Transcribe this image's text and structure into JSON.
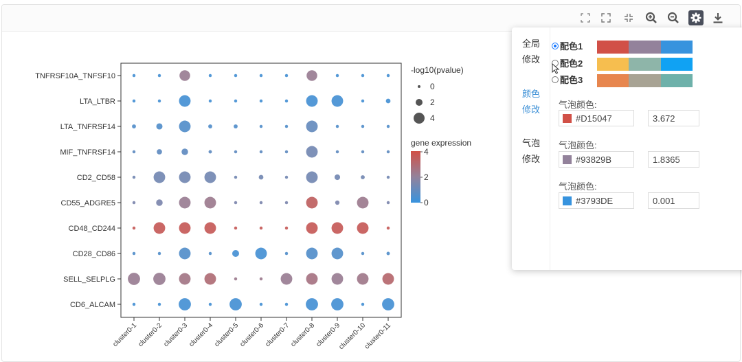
{
  "toolbar": {
    "buttons": [
      {
        "name": "fit-screen-icon",
        "glyph": "⤢"
      },
      {
        "name": "fullscreen-icon",
        "glyph": "⛶"
      },
      {
        "name": "exit-fullscreen-icon",
        "glyph": "⤡"
      },
      {
        "name": "zoom-in-icon",
        "glyph": "+"
      },
      {
        "name": "zoom-out-icon",
        "glyph": "−"
      },
      {
        "name": "settings-gear-icon",
        "glyph": "⚙"
      },
      {
        "name": "download-icon",
        "glyph": "⤓"
      }
    ]
  },
  "chart_data": {
    "type": "scatter",
    "subtype": "dot-plot",
    "title": "",
    "xlabel": "",
    "ylabel": "",
    "x_categories": [
      "cluster0-1",
      "cluster0-2",
      "cluster0-3",
      "cluster0-4",
      "cluster0-5",
      "cluster0-6",
      "cluster0-7",
      "cluster0-8",
      "cluster0-9",
      "cluster0-10",
      "cluster0-11"
    ],
    "y_categories": [
      "TNFRSF10A_TNFSF10",
      "LTA_LTBR",
      "LTA_TNFRSF14",
      "MIF_TNFRSF14",
      "CD2_CD58",
      "CD55_ADGRE5",
      "CD48_CD244",
      "CD28_CD86",
      "SELL_SELPLG",
      "CD6_ALCAM"
    ],
    "size_metric": "-log10(pvalue)",
    "color_metric": "gene expression",
    "size_values": [
      [
        0.1,
        0.1,
        2.5,
        0.1,
        0.1,
        0.1,
        0.1,
        2.5,
        0.1,
        0.1,
        0.1
      ],
      [
        0.1,
        0.1,
        2.8,
        0.1,
        0.1,
        0.1,
        0.1,
        2.8,
        2.8,
        0.1,
        0.6
      ],
      [
        0.4,
        1.1,
        2.8,
        0.4,
        0.4,
        0.1,
        0.1,
        2.8,
        0.1,
        0.1,
        0.1
      ],
      [
        0.1,
        0.8,
        1.2,
        0.2,
        0.1,
        0.1,
        0.1,
        2.8,
        0.1,
        0.1,
        0.1
      ],
      [
        0.1,
        2.8,
        2.8,
        2.8,
        0.1,
        0.6,
        0.1,
        2.8,
        0.9,
        0.4,
        0.1
      ],
      [
        0.1,
        1.2,
        2.8,
        2.8,
        0.1,
        0.1,
        0.1,
        2.8,
        0.5,
        2.8,
        0.1
      ],
      [
        0.1,
        2.8,
        2.8,
        2.8,
        0.1,
        0.1,
        0.1,
        2.8,
        2.8,
        2.8,
        0.1
      ],
      [
        0.1,
        0.1,
        2.8,
        0.1,
        1.3,
        2.8,
        0.1,
        2.8,
        2.8,
        0.1,
        0.2
      ],
      [
        3.0,
        3.0,
        2.8,
        2.8,
        0.1,
        0.1,
        2.8,
        2.8,
        2.8,
        2.8,
        2.8
      ],
      [
        0.1,
        0.1,
        3.0,
        0.1,
        3.0,
        0.1,
        0.1,
        3.0,
        3.0,
        0.1,
        3.0
      ]
    ],
    "color_values": [
      [
        0.3,
        0.3,
        2.2,
        0.3,
        0.3,
        0.3,
        0.3,
        2.2,
        0.3,
        0.3,
        0.3
      ],
      [
        0.3,
        0.3,
        0.3,
        0.3,
        0.3,
        0.3,
        0.3,
        0.3,
        0.3,
        0.3,
        0.3
      ],
      [
        0.6,
        0.6,
        0.6,
        0.6,
        0.6,
        0.6,
        0.6,
        1.0,
        0.6,
        0.6,
        0.6
      ],
      [
        0.9,
        0.9,
        0.9,
        0.9,
        0.9,
        0.9,
        0.9,
        1.3,
        0.9,
        0.9,
        0.9
      ],
      [
        1.3,
        1.3,
        1.3,
        1.3,
        1.3,
        1.3,
        1.3,
        1.3,
        1.3,
        1.3,
        1.3
      ],
      [
        1.5,
        1.5,
        2.2,
        2.3,
        1.5,
        1.5,
        1.5,
        3.4,
        1.5,
        2.3,
        1.5
      ],
      [
        3.6,
        3.6,
        3.6,
        3.6,
        3.6,
        3.6,
        3.6,
        3.6,
        3.6,
        3.6,
        3.6
      ],
      [
        0.6,
        0.6,
        0.6,
        0.6,
        0.3,
        0.3,
        0.6,
        0.6,
        0.6,
        0.6,
        0.6
      ],
      [
        2.2,
        2.2,
        2.5,
        2.9,
        2.3,
        2.3,
        2.2,
        2.6,
        2.2,
        2.4,
        3.1
      ],
      [
        0.3,
        0.3,
        0.3,
        0.3,
        0.3,
        0.3,
        0.3,
        0.3,
        0.3,
        0.3,
        0.3
      ]
    ],
    "legend_size": {
      "title": "-log10(pvalue)",
      "values": [
        0,
        2,
        4
      ]
    },
    "legend_color": {
      "title": "gene expression",
      "ticks": [
        4,
        2,
        0
      ],
      "range": [
        0,
        4
      ]
    },
    "colors": {
      "high": "#D15047",
      "mid": "#93829B",
      "low": "#3793DE"
    }
  },
  "settings": {
    "nav": {
      "global": "全局修改",
      "color": "颜色修改",
      "bubble": "气泡修改"
    },
    "schemes": [
      {
        "label": "配色1",
        "colors": [
          "#D15047",
          "#93829B",
          "#3793DE"
        ],
        "selected": true
      },
      {
        "label": "配色2",
        "colors": [
          "#F6BE4F",
          "#8EB5A9",
          "#10A2F3"
        ],
        "selected": false
      },
      {
        "label": "配色3",
        "colors": [
          "#E7864E",
          "#A8A394",
          "#6EB1AA"
        ],
        "selected": false
      }
    ],
    "bubble_color_label": "气泡颜色:",
    "bubbles": [
      {
        "color": "#D15047",
        "value": "3.672"
      },
      {
        "color": "#93829B",
        "value": "1.8365"
      },
      {
        "color": "#3793DE",
        "value": "0.001"
      }
    ]
  }
}
